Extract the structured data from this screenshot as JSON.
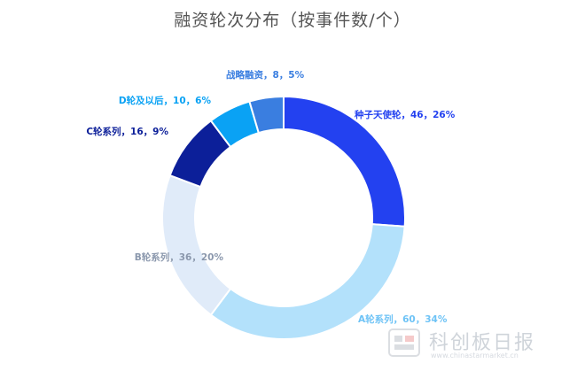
{
  "chart_data": {
    "type": "pie",
    "style": "donut",
    "title": "融资轮次分布（按事件数/个）",
    "categories": [
      "种子天使轮",
      "A轮系列",
      "B轮系列",
      "C轮系列",
      "D轮及以后",
      "战略融资"
    ],
    "values": [
      46,
      60,
      36,
      16,
      10,
      8
    ],
    "percentages": [
      "26%",
      "34%",
      "20%",
      "9%",
      "6%",
      "5%"
    ],
    "labels": [
      "种子天使轮，46，26%",
      "A轮系列，60，34%",
      "B轮系列，36，20%",
      "C轮系列，16，9%",
      "D轮及以后，10，6%",
      "战略融资，8，5%"
    ],
    "colors": [
      "#2341f0",
      "#b3e1fb",
      "#e0ebf9",
      "#0c1f99",
      "#0aa2f4",
      "#3a7ee0"
    ],
    "label_colors": [
      "#2341f0",
      "#6ec3f6",
      "#8b98ad",
      "#0c1f99",
      "#0aa2f4",
      "#3a7ee0"
    ],
    "start": "top, clockwise"
  },
  "watermark": {
    "name": "科创板日报",
    "url": "www.chinastarmarket.cn"
  }
}
